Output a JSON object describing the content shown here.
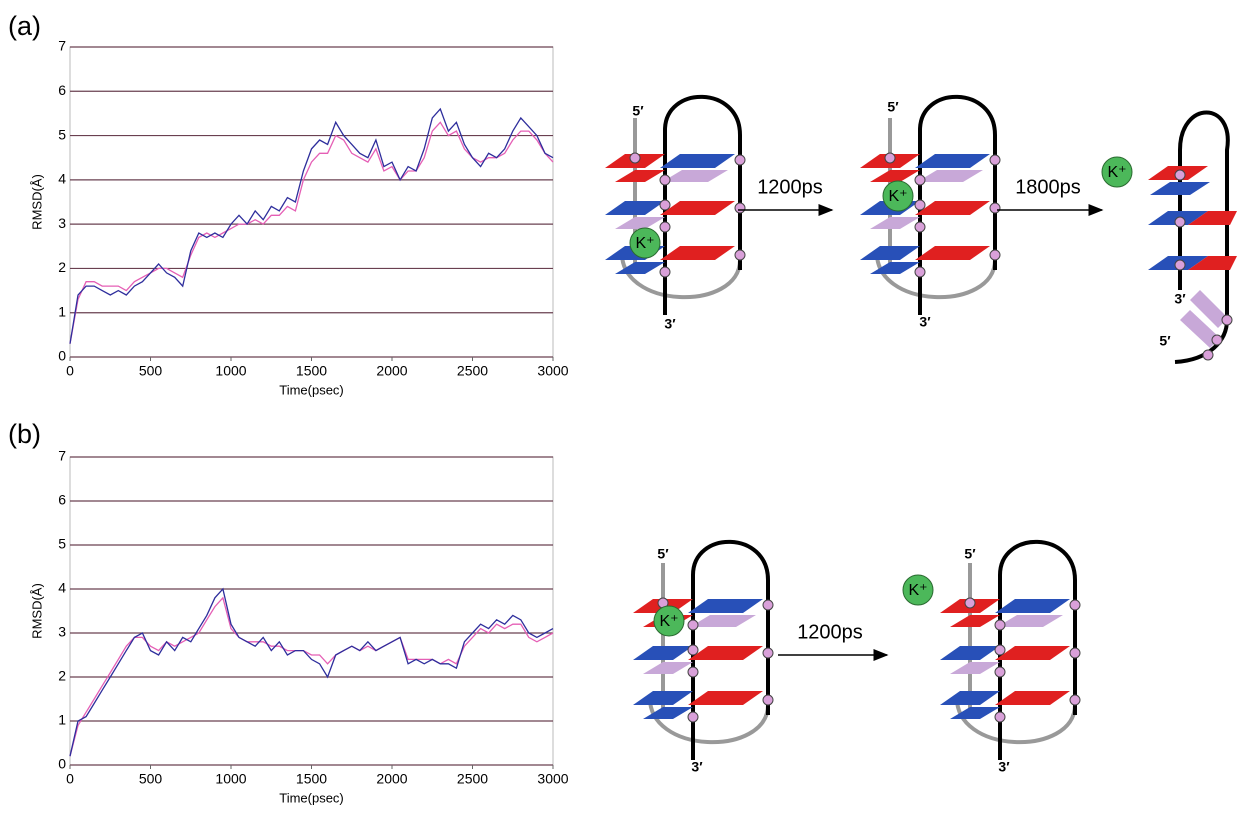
{
  "chart_data": [
    {
      "type": "line",
      "panel": "(a)",
      "x_label": "Time(psec)",
      "y_label": "RMSD(Å)",
      "xlim": [
        0,
        3000
      ],
      "ylim": [
        0,
        7
      ],
      "xticks": [
        0,
        500,
        1000,
        1500,
        2000,
        2500,
        3000
      ],
      "yticks": [
        0,
        1,
        2,
        3,
        4,
        5,
        6,
        7
      ],
      "grid": true,
      "x": [
        0,
        50,
        100,
        150,
        200,
        250,
        300,
        350,
        400,
        450,
        500,
        550,
        600,
        650,
        700,
        750,
        800,
        850,
        900,
        950,
        1000,
        1050,
        1100,
        1150,
        1200,
        1250,
        1300,
        1350,
        1400,
        1450,
        1500,
        1550,
        1600,
        1650,
        1700,
        1750,
        1800,
        1850,
        1900,
        1950,
        2000,
        2050,
        2100,
        2150,
        2200,
        2250,
        2300,
        2350,
        2400,
        2450,
        2500,
        2550,
        2600,
        2650,
        2700,
        2750,
        2800,
        2850,
        2900,
        2950,
        3000
      ],
      "series": [
        {
          "color": "#e55fb5",
          "values": [
            0.3,
            1.3,
            1.7,
            1.7,
            1.6,
            1.6,
            1.6,
            1.5,
            1.7,
            1.8,
            1.9,
            2.0,
            2.0,
            1.9,
            1.8,
            2.3,
            2.7,
            2.8,
            2.7,
            2.8,
            2.9,
            3.0,
            3.0,
            3.1,
            3.0,
            3.2,
            3.2,
            3.4,
            3.3,
            4.0,
            4.4,
            4.6,
            4.6,
            5.0,
            4.9,
            4.6,
            4.5,
            4.4,
            4.7,
            4.2,
            4.3,
            4.0,
            4.2,
            4.2,
            4.5,
            5.1,
            5.3,
            5.0,
            5.1,
            4.7,
            4.5,
            4.4,
            4.5,
            4.5,
            4.6,
            4.9,
            5.1,
            5.1,
            4.9,
            4.6,
            4.4
          ]
        },
        {
          "color": "#2e2e9c",
          "values": [
            0.3,
            1.4,
            1.6,
            1.6,
            1.5,
            1.4,
            1.5,
            1.4,
            1.6,
            1.7,
            1.9,
            2.1,
            1.9,
            1.8,
            1.6,
            2.4,
            2.8,
            2.7,
            2.8,
            2.7,
            3.0,
            3.2,
            3.0,
            3.3,
            3.1,
            3.4,
            3.3,
            3.6,
            3.5,
            4.2,
            4.7,
            4.9,
            4.8,
            5.3,
            5.0,
            4.8,
            4.6,
            4.5,
            4.9,
            4.3,
            4.4,
            4.0,
            4.3,
            4.2,
            4.7,
            5.4,
            5.6,
            5.1,
            5.3,
            4.8,
            4.5,
            4.3,
            4.6,
            4.5,
            4.7,
            5.1,
            5.4,
            5.2,
            5.0,
            4.6,
            4.5
          ]
        }
      ]
    },
    {
      "type": "line",
      "panel": "(b)",
      "x_label": "Time(psec)",
      "y_label": "RMSD(Å)",
      "xlim": [
        0,
        3000
      ],
      "ylim": [
        0,
        7
      ],
      "xticks": [
        0,
        500,
        1000,
        1500,
        2000,
        2500,
        3000
      ],
      "yticks": [
        0,
        1,
        2,
        3,
        4,
        5,
        6,
        7
      ],
      "grid": true,
      "x": [
        0,
        50,
        100,
        150,
        200,
        250,
        300,
        350,
        400,
        450,
        500,
        550,
        600,
        650,
        700,
        750,
        800,
        850,
        900,
        950,
        1000,
        1050,
        1100,
        1150,
        1200,
        1250,
        1300,
        1350,
        1400,
        1450,
        1500,
        1550,
        1600,
        1650,
        1700,
        1750,
        1800,
        1850,
        1900,
        1950,
        2000,
        2050,
        2100,
        2150,
        2200,
        2250,
        2300,
        2350,
        2400,
        2450,
        2500,
        2550,
        2600,
        2650,
        2700,
        2750,
        2800,
        2850,
        2900,
        2950,
        3000
      ],
      "series": [
        {
          "color": "#e55fb5",
          "values": [
            0.2,
            0.9,
            1.2,
            1.5,
            1.8,
            2.1,
            2.4,
            2.7,
            2.9,
            2.9,
            2.7,
            2.6,
            2.8,
            2.7,
            2.8,
            2.9,
            3.0,
            3.3,
            3.6,
            3.8,
            3.1,
            2.9,
            2.8,
            2.8,
            2.8,
            2.7,
            2.7,
            2.6,
            2.6,
            2.6,
            2.5,
            2.5,
            2.3,
            2.5,
            2.6,
            2.7,
            2.6,
            2.7,
            2.6,
            2.7,
            2.8,
            2.9,
            2.4,
            2.4,
            2.4,
            2.4,
            2.3,
            2.4,
            2.3,
            2.7,
            2.9,
            3.1,
            3.0,
            3.2,
            3.1,
            3.2,
            3.2,
            2.9,
            2.8,
            2.9,
            3.0
          ]
        },
        {
          "color": "#2e2e9c",
          "values": [
            0.2,
            1.0,
            1.1,
            1.4,
            1.7,
            2.0,
            2.3,
            2.6,
            2.9,
            3.0,
            2.6,
            2.5,
            2.8,
            2.6,
            2.9,
            2.8,
            3.1,
            3.4,
            3.8,
            4.0,
            3.2,
            2.9,
            2.8,
            2.7,
            2.9,
            2.6,
            2.8,
            2.5,
            2.6,
            2.6,
            2.4,
            2.3,
            2.0,
            2.5,
            2.6,
            2.7,
            2.6,
            2.8,
            2.6,
            2.7,
            2.8,
            2.9,
            2.3,
            2.4,
            2.3,
            2.4,
            2.3,
            2.3,
            2.2,
            2.8,
            3.0,
            3.2,
            3.1,
            3.3,
            3.2,
            3.4,
            3.3,
            3.0,
            2.9,
            3.0,
            3.1
          ]
        }
      ]
    }
  ],
  "schemes": [
    {
      "arrows": [
        "1200ps",
        "1800ps"
      ]
    },
    {
      "arrows": [
        "1200ps"
      ]
    }
  ],
  "labels": {
    "five_prime": "5′",
    "three_prime": "3′",
    "ion": "K⁺"
  }
}
